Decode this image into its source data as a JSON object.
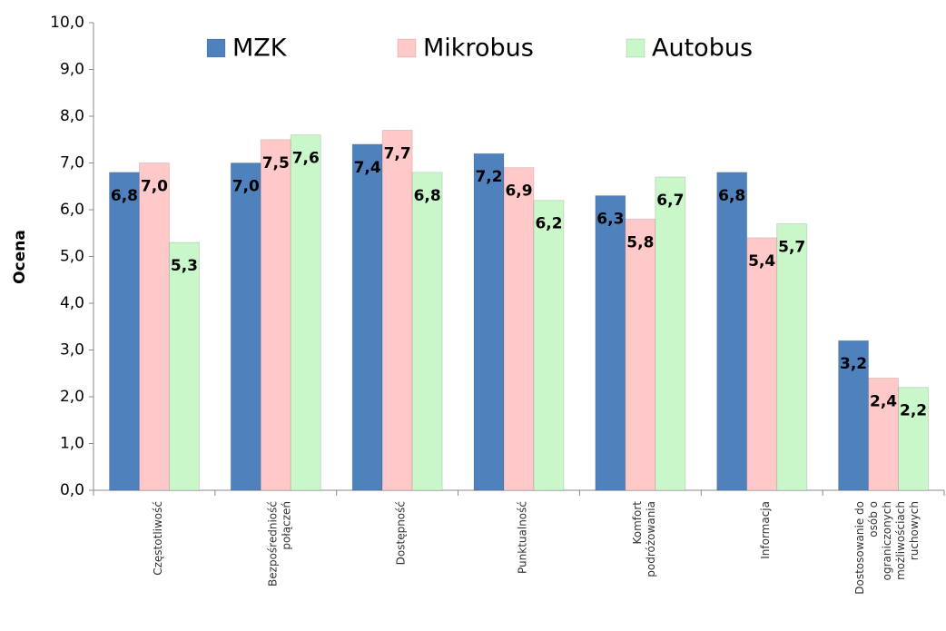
{
  "chart_data": {
    "type": "bar",
    "y_label": "Ocena",
    "categories": [
      "Częstotliwość",
      "Bezpośredniość połączeń",
      "Dostępność",
      "Punktualność",
      "Komfort podróżowania",
      "Informacja",
      "Dostosowanie do osób o ograniczonych możliwościach ruchowych"
    ],
    "series": [
      {
        "name": "MZK",
        "color": "#4f81bd",
        "values": [
          6.8,
          7.0,
          7.4,
          7.2,
          6.3,
          6.8,
          3.2
        ],
        "value_labels": [
          "6,8",
          "7,0",
          "7,4",
          "7,2",
          "6,3",
          "6,8",
          "3,2"
        ]
      },
      {
        "name": "Mikrobus",
        "color": "#ffc9c9",
        "values": [
          7.0,
          7.5,
          7.7,
          6.9,
          5.8,
          5.4,
          2.4
        ],
        "value_labels": [
          "7,0",
          "7,5",
          "7,7",
          "6,9",
          "5,8",
          "5,4",
          "2,4"
        ]
      },
      {
        "name": "Autobus",
        "color": "#c9f7c9",
        "values": [
          5.3,
          7.6,
          6.8,
          6.2,
          6.7,
          5.7,
          2.2
        ],
        "value_labels": [
          "5,3",
          "7,6",
          "6,8",
          "6,2",
          "6,7",
          "5,7",
          "2,2"
        ]
      }
    ],
    "ylim": [
      0,
      10
    ],
    "yticks": [
      {
        "value": 0,
        "label": "0,0"
      },
      {
        "value": 1,
        "label": "1,0"
      },
      {
        "value": 2,
        "label": "2,0"
      },
      {
        "value": 3,
        "label": "3,0"
      },
      {
        "value": 4,
        "label": "4,0"
      },
      {
        "value": 5,
        "label": "5,0"
      },
      {
        "value": 6,
        "label": "6,0"
      },
      {
        "value": 7,
        "label": "7,0"
      },
      {
        "value": 8,
        "label": "8,0"
      },
      {
        "value": 9,
        "label": "9,0"
      },
      {
        "value": 10,
        "label": "10,0"
      }
    ],
    "legend": "top"
  }
}
